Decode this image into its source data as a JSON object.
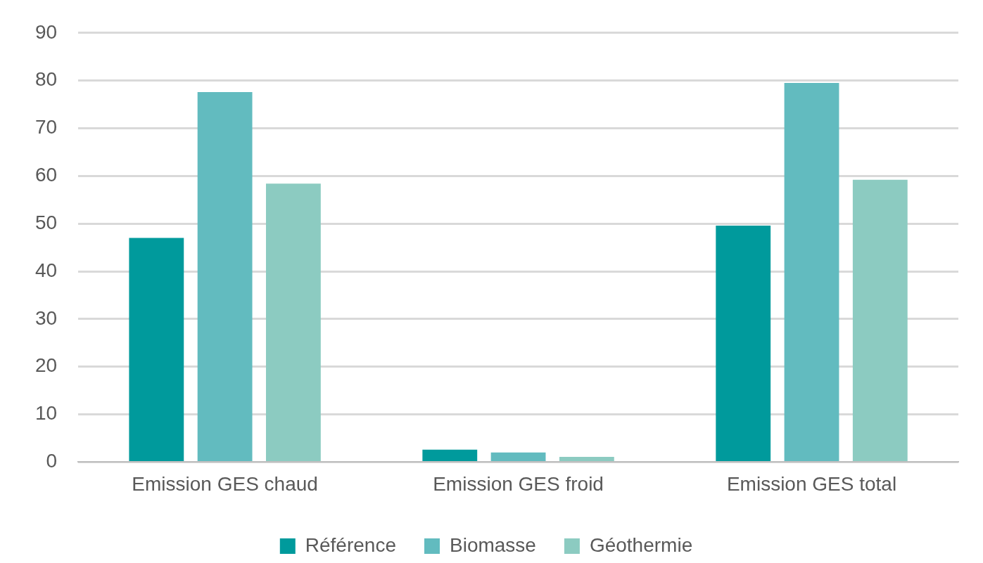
{
  "chart_data": {
    "type": "bar",
    "categories": [
      "Emission GES chaud",
      "Emission GES froid",
      "Emission GES total"
    ],
    "series": [
      {
        "name": "Référence",
        "color": "#009a9c",
        "values": [
          47.0,
          2.6,
          49.6
        ]
      },
      {
        "name": "Biomasse",
        "color": "#62bbbf",
        "values": [
          77.6,
          2.0,
          79.5
        ]
      },
      {
        "name": "Géothermie",
        "color": "#8ccbc1",
        "values": [
          58.4,
          1.1,
          59.2
        ]
      }
    ],
    "ylim": [
      0,
      90
    ],
    "yticks": [
      0,
      10,
      20,
      30,
      40,
      50,
      60,
      70,
      80,
      90
    ],
    "grid": "y",
    "legend": "bottom"
  }
}
